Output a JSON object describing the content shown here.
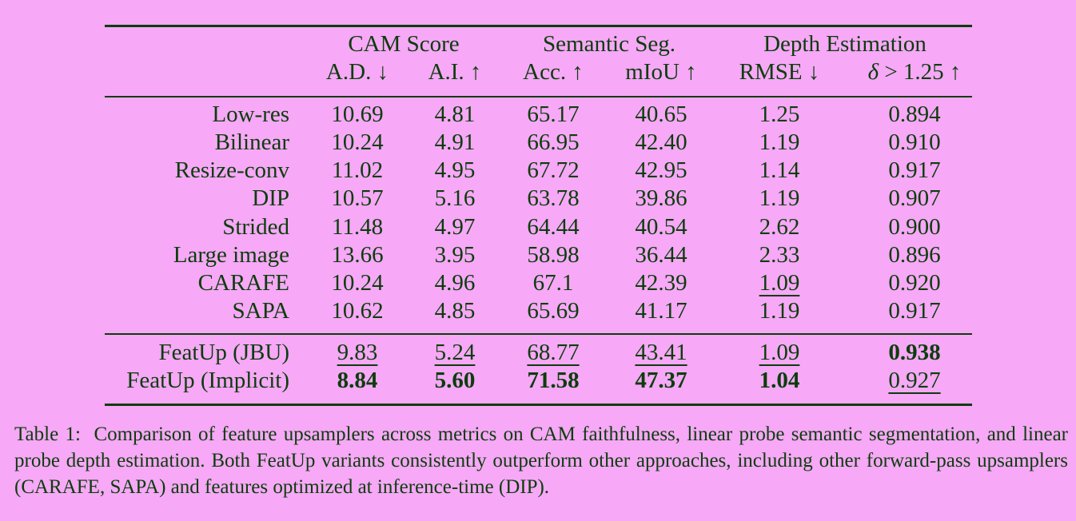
{
  "table": {
    "groups": [
      "CAM Score",
      "Semantic Seg.",
      "Depth Estimation"
    ],
    "subheaders": [
      {
        "text": "A.D.",
        "arrow": "↓"
      },
      {
        "text": "A.I.",
        "arrow": "↑"
      },
      {
        "text": "Acc.",
        "arrow": "↑"
      },
      {
        "text": "mIoU",
        "arrow": "↑"
      },
      {
        "text": "RMSE",
        "arrow": "↓"
      },
      {
        "text": "> 1.25",
        "symbol": "δ",
        "arrow": "↑"
      }
    ],
    "rows": [
      {
        "method": "Low-res",
        "values": [
          "10.69",
          "4.81",
          "65.17",
          "40.65",
          "1.25",
          "0.894"
        ]
      },
      {
        "method": "Bilinear",
        "values": [
          "10.24",
          "4.91",
          "66.95",
          "42.40",
          "1.19",
          "0.910"
        ]
      },
      {
        "method": "Resize-conv",
        "values": [
          "11.02",
          "4.95",
          "67.72",
          "42.95",
          "1.14",
          "0.917"
        ]
      },
      {
        "method": "DIP",
        "values": [
          "10.57",
          "5.16",
          "63.78",
          "39.86",
          "1.19",
          "0.907"
        ]
      },
      {
        "method": "Strided",
        "values": [
          "11.48",
          "4.97",
          "64.44",
          "40.54",
          "2.62",
          "0.900"
        ]
      },
      {
        "method": "Large image",
        "values": [
          "13.66",
          "3.95",
          "58.98",
          "36.44",
          "2.33",
          "0.896"
        ]
      },
      {
        "method": "CARAFE",
        "values": [
          "10.24",
          "4.96",
          "67.1",
          "42.39",
          "1.09",
          "0.920"
        ]
      },
      {
        "method": "SAPA",
        "values": [
          "10.62",
          "4.85",
          "65.69",
          "41.17",
          "1.19",
          "0.917"
        ]
      }
    ],
    "featup_rows": [
      {
        "method": "FeatUp (JBU)",
        "values": [
          "9.83",
          "5.24",
          "68.77",
          "43.41",
          "1.09",
          "0.938"
        ]
      },
      {
        "method": "FeatUp (Implicit)",
        "values": [
          "8.84",
          "5.60",
          "71.58",
          "47.37",
          "1.04",
          "0.927"
        ]
      }
    ]
  },
  "caption": {
    "label": "Table 1:",
    "text": "Comparison of feature upsamplers across metrics on CAM faithfulness, linear probe semantic segmentation, and linear probe depth estimation. Both FeatUp variants consistently outperform other approaches, including other forward-pass upsamplers (CARAFE, SAPA) and features optimized at inference-time (DIP)."
  }
}
